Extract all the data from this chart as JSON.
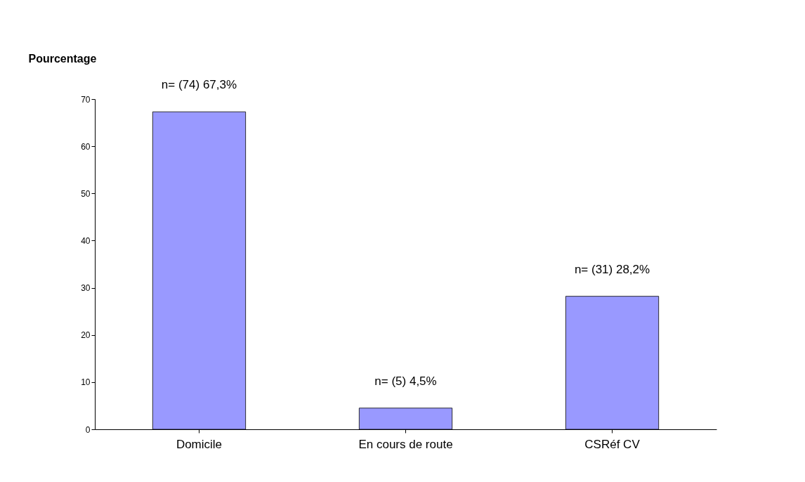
{
  "chart_data": {
    "type": "bar",
    "ylabel": "Pourcentage",
    "categories": [
      "Domicile",
      "En cours de route",
      "CSRéf CV"
    ],
    "values": [
      67.3,
      4.5,
      28.2
    ],
    "value_labels": [
      "n= (74) 67,3%",
      "n= (5) 4,5%",
      "n= (31) 28,2%"
    ],
    "color": "#9999ff",
    "ylim": [
      0,
      70
    ],
    "yticks": [
      0,
      10,
      20,
      30,
      40,
      50,
      60,
      70
    ],
    "grid": false
  }
}
